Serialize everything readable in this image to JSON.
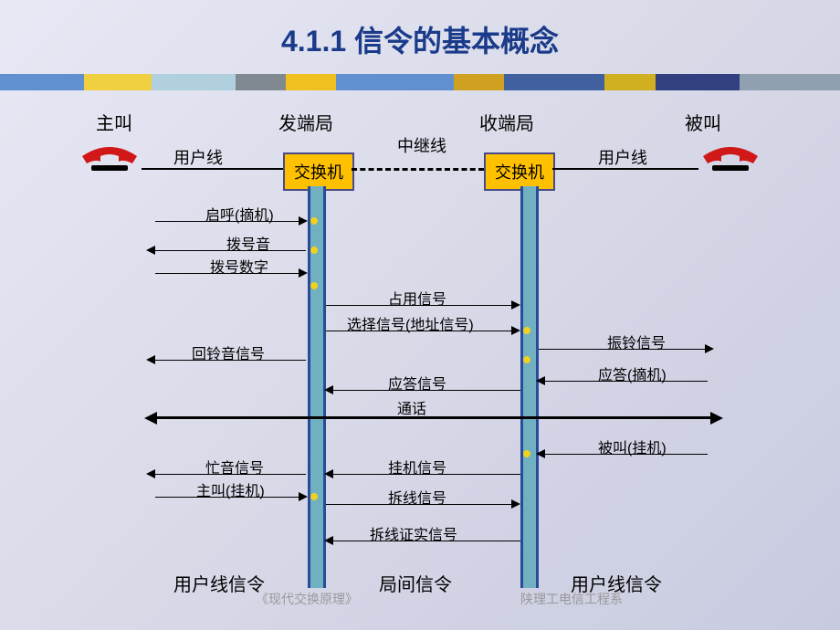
{
  "title": "4.1.1 信令的基本概念",
  "colorBar": {
    "segments": [
      {
        "color": "#6090d0",
        "width": "10%"
      },
      {
        "color": "#f0d040",
        "width": "8%"
      },
      {
        "color": "#b0d0e0",
        "width": "10%"
      },
      {
        "color": "#808890",
        "width": "6%"
      },
      {
        "color": "#f0c020",
        "width": "6%"
      },
      {
        "color": "#6090d0",
        "width": "14%"
      },
      {
        "color": "#d0a020",
        "width": "6%"
      },
      {
        "color": "#4060a0",
        "width": "12%"
      },
      {
        "color": "#d0b020",
        "width": "6%"
      },
      {
        "color": "#304080",
        "width": "10%"
      },
      {
        "color": "#90a0b0",
        "width": "12%"
      }
    ]
  },
  "topLabels": {
    "caller": "主叫",
    "origin": "发端局",
    "terminating": "收端局",
    "called": "被叫",
    "userLine": "用户线",
    "trunkLine": "中继线"
  },
  "switchBox": "交换机",
  "phone": {
    "color": "#d01818",
    "baseColor": "#000"
  },
  "vline": {
    "border": "#2a4a9a",
    "fill": "#70b0c0"
  },
  "signals": {
    "offhook": "启呼(摘机)",
    "dialtone": "拨号音",
    "dialdigits": "拨号数字",
    "seize": "占用信号",
    "select": "选择信号(地址信号)",
    "ringback": "回铃音信号",
    "ringing": "振铃信号",
    "answer": "应答信号",
    "answerHook": "应答(摘机)",
    "talk": "通话",
    "calledHang": "被叫(挂机)",
    "busytone": "忙音信号",
    "hangup": "挂机信号",
    "callerHang": "主叫(挂机)",
    "clearfwd": "拆线信号",
    "clearconf": "拆线证实信号"
  },
  "bottomLabels": {
    "userSignaling": "用户线信令",
    "trunkSignaling": "局间信令"
  },
  "footer": {
    "left": "《现代交换原理》",
    "right": "陕理工电信工程系"
  },
  "layout": {
    "leftPhoneX": 60,
    "rightPhoneX": 730,
    "switch1X": 280,
    "switch2X": 500,
    "vline1X": 307,
    "vline2X": 540,
    "topY": 70,
    "leftColX": 75,
    "rightColX": 780
  }
}
